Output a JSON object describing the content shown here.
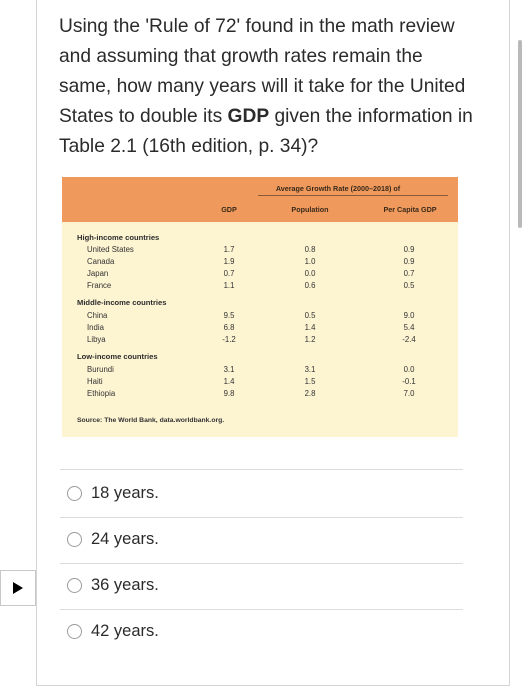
{
  "question": {
    "part1": "Using the 'Rule of 72' found in the math review and assuming that growth rates remain the same, how many years will it take for the United States to double its ",
    "bold": "GDP",
    "part2": " given the information in Table 2.1 (16th edition, p. 34)?"
  },
  "table": {
    "span_header": "Average Growth Rate (2000–2018) of",
    "columns": [
      "GDP",
      "Population",
      "Per Capita GDP"
    ],
    "groups": [
      {
        "name": "High-income countries",
        "rows": [
          {
            "country": "United States",
            "gdp": "1.7",
            "pop": "0.8",
            "pcgdp": "0.9"
          },
          {
            "country": "Canada",
            "gdp": "1.9",
            "pop": "1.0",
            "pcgdp": "0.9"
          },
          {
            "country": "Japan",
            "gdp": "0.7",
            "pop": "0.0",
            "pcgdp": "0.7"
          },
          {
            "country": "France",
            "gdp": "1.1",
            "pop": "0.6",
            "pcgdp": "0.5"
          }
        ]
      },
      {
        "name": "Middle-income countries",
        "rows": [
          {
            "country": "China",
            "gdp": "9.5",
            "pop": "0.5",
            "pcgdp": "9.0"
          },
          {
            "country": "India",
            "gdp": "6.8",
            "pop": "1.4",
            "pcgdp": "5.4"
          },
          {
            "country": "Libya",
            "gdp": "-1.2",
            "pop": "1.2",
            "pcgdp": "-2.4"
          }
        ]
      },
      {
        "name": "Low-income countries",
        "rows": [
          {
            "country": "Burundi",
            "gdp": "3.1",
            "pop": "3.1",
            "pcgdp": "0.0"
          },
          {
            "country": "Haiti",
            "gdp": "1.4",
            "pop": "1.5",
            "pcgdp": "-0.1"
          },
          {
            "country": "Ethiopia",
            "gdp": "9.8",
            "pop": "2.8",
            "pcgdp": "7.0"
          }
        ]
      }
    ],
    "source": "Source: The World Bank, data.worldbank.org."
  },
  "options": [
    "18 years.",
    "24 years.",
    "36 years.",
    "42 years."
  ],
  "colors": {
    "table_header": "#ef9a5c",
    "table_body": "#fdf4d2"
  },
  "icons": {
    "left_marker": "triangle-right-icon"
  }
}
